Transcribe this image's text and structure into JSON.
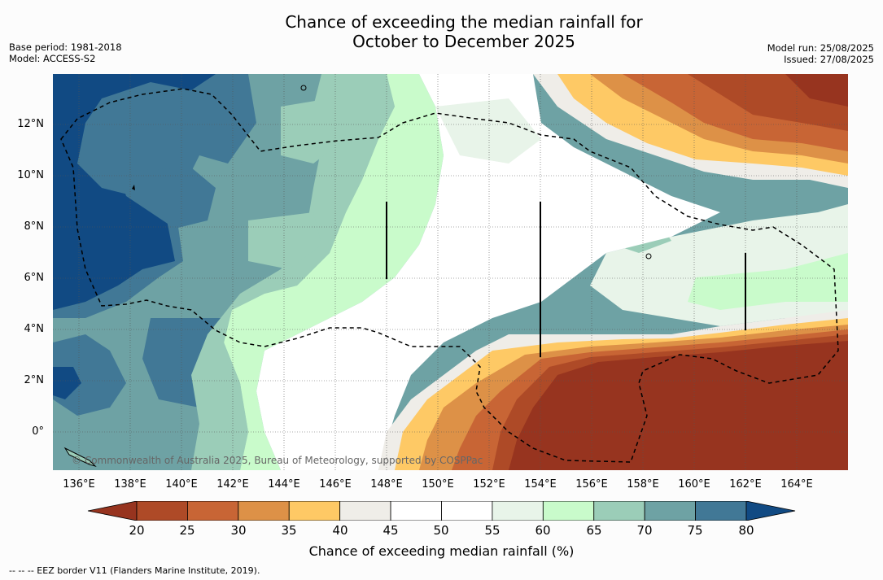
{
  "title_line1": "Chance of exceeding the median rainfall for",
  "title_line2": "October to December 2025",
  "base_period": "Base period: 1981-2018",
  "model": "Model: ACCESS-S2",
  "model_run": "Model run: 25/08/2025",
  "issued": "Issued: 27/08/2025",
  "copyright": "© Commonwealth of Australia 2025, Bureau of Meteorology, supported by COSPPac",
  "footnote": "--  --  -- EEZ border V11 (Flanders Marine Institute, 2019).",
  "latitude_labels": [
    "12°N",
    "10°N",
    "8°N",
    "6°N",
    "4°N",
    "2°N",
    "0°"
  ],
  "longitude_labels": [
    "136°E",
    "138°E",
    "140°E",
    "142°E",
    "144°E",
    "146°E",
    "148°E",
    "150°E",
    "152°E",
    "154°E",
    "156°E",
    "158°E",
    "160°E",
    "162°E",
    "164°E"
  ],
  "colorbar": {
    "label": "Chance of exceeding median rainfall (%)",
    "ticks": [
      "20",
      "25",
      "30",
      "35",
      "40",
      "45",
      "50",
      "55",
      "60",
      "65",
      "70",
      "75",
      "80"
    ],
    "colors": [
      "#97341f",
      "#ae4a27",
      "#c86535",
      "#dd9147",
      "#fec965",
      "#efede8",
      "#ffffff",
      "#ffffff",
      "#e8f4e9",
      "#c9fbcb",
      "#9bcdb8",
      "#6ea2a4",
      "#417896",
      "#114a83"
    ]
  }
}
